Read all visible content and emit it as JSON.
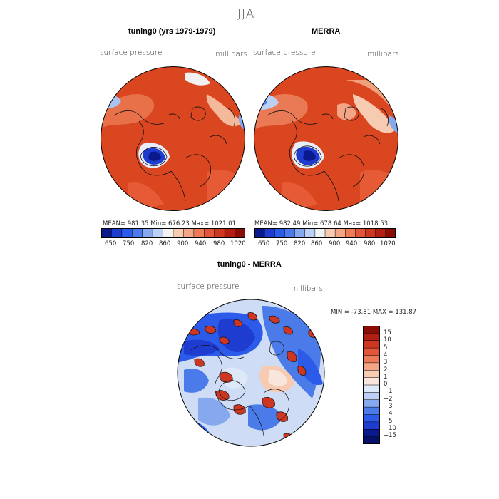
{
  "figure": {
    "title": "JJA"
  },
  "chart_data": [
    {
      "type": "heatmap",
      "title": "tuning0 (yrs 1979-1979)",
      "variable": "surface pressure",
      "units": "millibars",
      "projection": "north polar stereographic",
      "stats": "MEAN=  981.35   Min=  676.23   Max= 1021.01",
      "mean": 981.35,
      "min": 676.23,
      "max": 1021.01,
      "colorbar": {
        "orientation": "horizontal",
        "tick_labels": [
          "650",
          "750",
          "820",
          "860",
          "900",
          "940",
          "980",
          "1020"
        ],
        "colors": [
          "#0a1a8c",
          "#1e3ccf",
          "#2c5bea",
          "#4a7be8",
          "#86a8ee",
          "#bcd0f5",
          "#f2f2f2",
          "#f6cbb2",
          "#f4a585",
          "#ee7b58",
          "#e2553a",
          "#cd3620",
          "#b21f12",
          "#8a0c06"
        ]
      }
    },
    {
      "type": "heatmap",
      "title": "MERRA",
      "variable": "surface pressure",
      "units": "millibars",
      "projection": "north polar stereographic",
      "stats": "MEAN=  982.49   Min=  678.64   Max= 1018.53",
      "mean": 982.49,
      "min": 678.64,
      "max": 1018.53,
      "colorbar": {
        "orientation": "horizontal",
        "tick_labels": [
          "650",
          "750",
          "820",
          "860",
          "900",
          "940",
          "980",
          "1020"
        ],
        "colors": [
          "#0a1a8c",
          "#1e3ccf",
          "#2c5bea",
          "#4a7be8",
          "#86a8ee",
          "#bcd0f5",
          "#f2f2f2",
          "#f6cbb2",
          "#f4a585",
          "#ee7b58",
          "#e2553a",
          "#cd3620",
          "#b21f12",
          "#8a0c06"
        ]
      }
    },
    {
      "type": "heatmap",
      "title": "tuning0 - MERRA",
      "variable": "surface pressure",
      "units": "millibars",
      "projection": "north polar stereographic",
      "stats": "MIN = -73.81 MAX = 131.87",
      "min": -73.81,
      "max": 131.87,
      "colorbar": {
        "orientation": "vertical",
        "tick_labels": [
          "15",
          "10",
          "5",
          "4",
          "3",
          "2",
          "1",
          "0",
          "−1",
          "−2",
          "−3",
          "−4",
          "−5",
          "−10",
          "−15"
        ],
        "colors": [
          "#8a0c06",
          "#b21f12",
          "#cd3620",
          "#e2553a",
          "#ee7b58",
          "#f4a585",
          "#f6cbb2",
          "#f8e6dc",
          "#dde8f8",
          "#bcd0f5",
          "#86a8ee",
          "#4a7be8",
          "#2c5bea",
          "#1e3ccf",
          "#0a1a8c",
          "#06106b"
        ]
      }
    }
  ]
}
